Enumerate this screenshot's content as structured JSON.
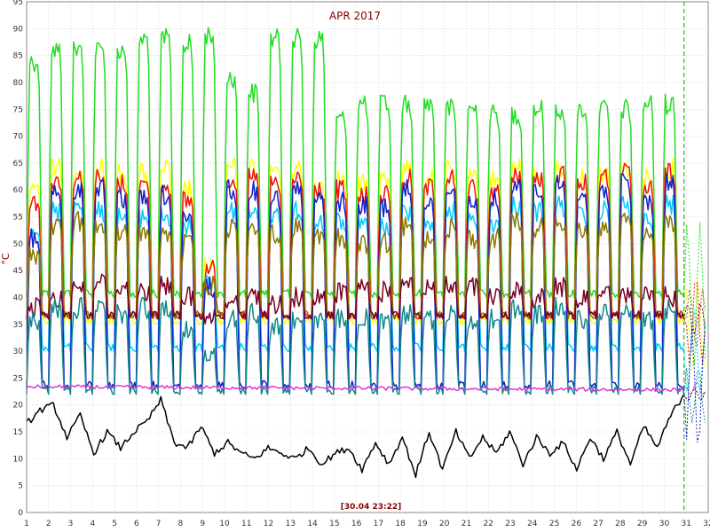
{
  "chart_data": {
    "type": "line",
    "title": "APR 2017",
    "ylabel": "°C",
    "xlabel": "",
    "timestamp": "[30.04 23:22]",
    "xlim": [
      1,
      32
    ],
    "ylim": [
      0,
      95
    ],
    "xticks": [
      "1",
      "2",
      "3",
      "4",
      "5",
      "6",
      "7",
      "8",
      "9",
      "10",
      "11",
      "12",
      "13",
      "14",
      "15",
      "16",
      "17",
      "18",
      "19",
      "20",
      "21",
      "22",
      "23",
      "24",
      "25",
      "26",
      "27",
      "28",
      "29",
      "30",
      "31",
      "32"
    ],
    "yticks": [
      "0",
      "5",
      "10",
      "15",
      "20",
      "25",
      "30",
      "35",
      "40",
      "45",
      "50",
      "55",
      "60",
      "65",
      "70",
      "75",
      "80",
      "85",
      "90",
      "95"
    ],
    "grid": true,
    "cursor_x": 30.9,
    "series": [
      {
        "color": "#22dd22",
        "width": 1.5,
        "kind": "daily",
        "values": [
          86,
          88,
          89,
          88,
          90,
          88,
          88,
          89,
          90,
          91,
          90,
          89,
          86,
          91,
          92,
          83,
          80,
          88,
          90,
          89,
          90,
          90,
          90,
          75,
          77,
          78,
          78,
          77,
          78,
          78,
          78,
          77,
          78,
          77,
          78,
          76,
          76,
          76,
          77,
          77,
          77,
          77,
          77,
          77,
          77,
          77,
          78,
          78,
          78,
          79
        ],
        "base": 40
      },
      {
        "color": "#ffff00",
        "width": 1.5,
        "kind": "daily",
        "values": [
          63,
          66,
          66,
          65,
          66,
          65,
          65,
          68,
          66,
          62,
          48,
          66,
          66,
          66,
          65,
          66,
          66,
          63,
          63,
          64,
          63,
          64,
          64,
          66,
          64,
          66,
          66,
          64,
          64,
          65,
          66,
          65,
          66,
          66,
          64,
          65,
          66,
          65,
          64,
          66,
          63
        ],
        "base": 35
      },
      {
        "color": "#ee1111",
        "width": 1.5,
        "kind": "daily",
        "values": [
          60,
          64,
          64,
          63,
          64,
          63,
          63,
          67,
          63,
          60,
          47,
          64,
          64,
          64,
          62,
          63,
          64,
          62,
          62,
          62,
          61,
          61,
          62,
          64,
          62,
          64,
          64,
          62,
          62,
          63,
          65,
          64,
          65,
          65,
          63,
          64,
          65,
          64,
          62,
          65,
          62
        ],
        "base": 36
      },
      {
        "color": "#00ccff",
        "width": 1.5,
        "kind": "daily",
        "values": [
          55,
          58,
          59,
          58,
          58,
          57,
          57,
          60,
          57,
          55,
          45,
          58,
          58,
          58,
          56,
          57,
          58,
          56,
          56,
          56,
          55,
          55,
          56,
          58,
          56,
          58,
          58,
          56,
          56,
          57,
          59,
          58,
          59,
          59,
          57,
          58,
          59,
          58,
          56,
          59,
          57
        ],
        "base": 30
      },
      {
        "color": "#1122cc",
        "width": 1.5,
        "kind": "daily",
        "values": [
          53,
          62,
          62,
          60,
          62,
          60,
          60,
          65,
          61,
          56,
          44,
          62,
          62,
          62,
          60,
          61,
          62,
          60,
          60,
          60,
          59,
          59,
          60,
          62,
          60,
          62,
          62,
          60,
          60,
          61,
          63,
          62,
          63,
          63,
          61,
          62,
          63,
          62,
          60,
          63,
          60
        ],
        "base": 23
      },
      {
        "color": "#8a7a00",
        "width": 1.5,
        "kind": "daily",
        "values": [
          50,
          55,
          56,
          55,
          55,
          54,
          54,
          57,
          54,
          52,
          44,
          55,
          55,
          55,
          54,
          54,
          55,
          53,
          53,
          53,
          52,
          52,
          53,
          55,
          53,
          55,
          55,
          53,
          53,
          54,
          56,
          55,
          56,
          56,
          54,
          55,
          56,
          55,
          53,
          56,
          54
        ],
        "base": 36
      },
      {
        "color": "#7a0022",
        "width": 1.5,
        "kind": "daily",
        "values": [
          40,
          42,
          44,
          43,
          45,
          44,
          43,
          47,
          44,
          42,
          38,
          40,
          41,
          42,
          40,
          41,
          42,
          42,
          44,
          43,
          44,
          43,
          42,
          45,
          44,
          44,
          43,
          44,
          42,
          43,
          43,
          42,
          44,
          43,
          42,
          43,
          42,
          41,
          42,
          42,
          40
        ],
        "base": 36
      },
      {
        "color": "#118888",
        "width": 1.5,
        "kind": "daily",
        "values": [
          38,
          40,
          40,
          41,
          40,
          39,
          40,
          42,
          40,
          36,
          32,
          38,
          38,
          39,
          38,
          37,
          38,
          38,
          39,
          38,
          38,
          37,
          38,
          39,
          38,
          39,
          39,
          38,
          38,
          39,
          40,
          39,
          40,
          40,
          38,
          39,
          40,
          39,
          38,
          40,
          38
        ],
        "base": 22
      },
      {
        "color": "#dd33dd",
        "width": 1.5,
        "kind": "flat",
        "start": 23.4,
        "end": 22.8
      },
      {
        "color": "#000000",
        "width": 1.5,
        "kind": "outdoor",
        "values": [
          16.5,
          19,
          20,
          14,
          18,
          11,
          15,
          12,
          15,
          17,
          21,
          13,
          12,
          16,
          11,
          13,
          11,
          10,
          12,
          11,
          10,
          12,
          9,
          11,
          12,
          8,
          13,
          9,
          14,
          7,
          15,
          8,
          15,
          10,
          14,
          11,
          15,
          9,
          14,
          11,
          13,
          8,
          14,
          10,
          15,
          9,
          16,
          12,
          18,
          22
        ]
      }
    ]
  }
}
